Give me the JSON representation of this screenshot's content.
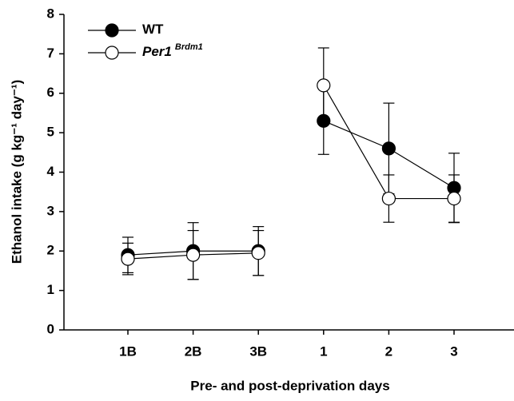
{
  "chart_data": {
    "type": "line",
    "x_label": "Pre- and post-deprivation days",
    "y_label": "Ethanol intake (g kg⁻¹ day⁻¹)",
    "categories": [
      "1B",
      "2B",
      "3B",
      null,
      "1",
      "2",
      "3"
    ],
    "series": [
      {
        "name": "WT",
        "color": "#000000",
        "marker_fill": "#000000",
        "values": [
          1.9,
          2.0,
          2.0,
          null,
          5.3,
          4.6,
          3.6
        ],
        "errors": [
          0.45,
          0.72,
          0.62,
          null,
          0.85,
          1.15,
          0.88
        ]
      },
      {
        "name": "Per1",
        "name_superscript": "Brdm1",
        "color": "#000000",
        "marker_fill": "#ffffff",
        "values": [
          1.8,
          1.9,
          1.95,
          null,
          6.2,
          3.33,
          3.33
        ],
        "errors": [
          0.4,
          0.62,
          0.57,
          null,
          0.95,
          0.6,
          0.6
        ]
      }
    ],
    "ylim": [
      0,
      8
    ],
    "yticks": [
      0,
      1,
      2,
      3,
      4,
      5,
      6,
      7,
      8
    ],
    "legend": "upper left"
  }
}
